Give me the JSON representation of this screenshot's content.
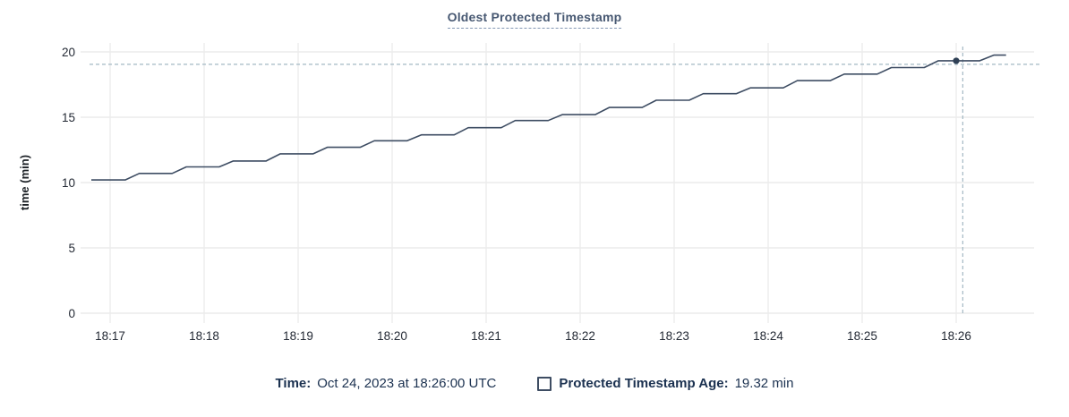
{
  "title": "Oldest Protected Timestamp",
  "colors": {
    "bg": "#ffffff",
    "title": "#475872",
    "title_underline": "#8296b3",
    "axis_text": "#242a35",
    "ylabel_text": "#1c2126",
    "grid": "#ececec",
    "line": "#3e4d63",
    "crosshair": "#a3b8c4",
    "dot": "#2f4055",
    "legend_text": "#1b3150"
  },
  "legend": {
    "time_label": "Time:",
    "time_value": "Oct 24, 2023 at 18:26:00 UTC",
    "series_label": "Protected Timestamp Age:",
    "series_value": "19.32 min"
  },
  "chart_data": {
    "type": "line",
    "title": "Oldest Protected Timestamp",
    "xlabel": "",
    "ylabel": "time (min)",
    "ylim": [
      0,
      20
    ],
    "yticks": [
      0,
      5,
      10,
      15,
      20
    ],
    "xticks": [
      "18:17",
      "18:18",
      "18:19",
      "18:20",
      "18:21",
      "18:22",
      "18:23",
      "18:24",
      "18:25",
      "18:26"
    ],
    "grid": true,
    "legend_position": "bottom",
    "series": [
      {
        "name": "Protected Timestamp Age",
        "x_unit": "minutes after 18:17",
        "points": [
          [
            -0.2,
            10.2
          ],
          [
            0.16,
            10.2
          ],
          [
            0.31,
            10.7
          ],
          [
            0.66,
            10.7
          ],
          [
            0.81,
            11.2
          ],
          [
            1.16,
            11.2
          ],
          [
            1.31,
            11.65
          ],
          [
            1.66,
            11.65
          ],
          [
            1.81,
            12.2
          ],
          [
            2.16,
            12.2
          ],
          [
            2.31,
            12.7
          ],
          [
            2.66,
            12.7
          ],
          [
            2.81,
            13.2
          ],
          [
            3.16,
            13.2
          ],
          [
            3.31,
            13.65
          ],
          [
            3.66,
            13.65
          ],
          [
            3.81,
            14.2
          ],
          [
            4.16,
            14.2
          ],
          [
            4.31,
            14.75
          ],
          [
            4.66,
            14.75
          ],
          [
            4.81,
            15.2
          ],
          [
            5.16,
            15.2
          ],
          [
            5.31,
            15.75
          ],
          [
            5.66,
            15.75
          ],
          [
            5.81,
            16.3
          ],
          [
            6.16,
            16.3
          ],
          [
            6.31,
            16.8
          ],
          [
            6.66,
            16.8
          ],
          [
            6.81,
            17.25
          ],
          [
            7.16,
            17.25
          ],
          [
            7.31,
            17.8
          ],
          [
            7.66,
            17.8
          ],
          [
            7.81,
            18.3
          ],
          [
            8.16,
            18.3
          ],
          [
            8.31,
            18.8
          ],
          [
            8.66,
            18.8
          ],
          [
            8.81,
            19.32
          ],
          [
            9.25,
            19.32
          ],
          [
            9.4,
            19.75
          ],
          [
            9.53,
            19.75
          ]
        ]
      }
    ],
    "highlight_point": {
      "t": 9.0,
      "v": 19.32,
      "time": "18:26:00",
      "value_label": "19.32 min"
    },
    "crosshair": {
      "t": 9.07,
      "v": 19.05
    }
  }
}
